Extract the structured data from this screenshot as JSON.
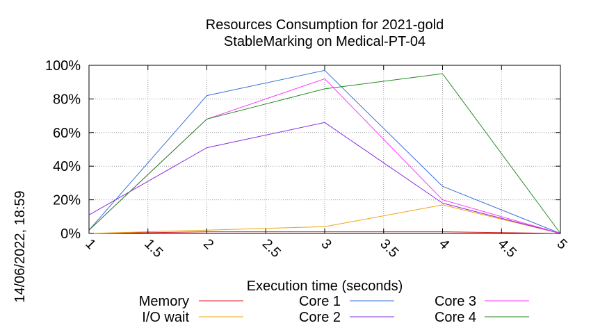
{
  "chart_data": {
    "type": "line",
    "title": "Resources Consumption for 2021-gold",
    "subtitle": "StableMarking on Medical-PT-04",
    "xlabel": "Execution time (seconds)",
    "ylabel": "",
    "side_label": "14/06/2022, 18:59",
    "x": [
      1,
      2,
      3,
      4,
      5
    ],
    "xlim": [
      1,
      5
    ],
    "ylim": [
      0,
      100
    ],
    "xticks": [
      "1",
      "1.5",
      "2",
      "2.5",
      "3",
      "3.5",
      "4",
      "4.5",
      "5"
    ],
    "xtick_values": [
      1,
      1.5,
      2,
      2.5,
      3,
      3.5,
      4,
      4.5,
      5
    ],
    "yticks": [
      "0%",
      "20%",
      "40%",
      "60%",
      "80%",
      "100%"
    ],
    "ytick_values": [
      0,
      20,
      40,
      60,
      80,
      100
    ],
    "grid": true,
    "legend_position": "bottom",
    "series": [
      {
        "name": "Memory",
        "color": "#e41a1c",
        "values": [
          0,
          1,
          1,
          1,
          0
        ]
      },
      {
        "name": "I/O wait",
        "color": "#f0a30a",
        "values": [
          0,
          2,
          4,
          17,
          0
        ]
      },
      {
        "name": "Core 1",
        "color": "#3a6fd8",
        "values": [
          2,
          82,
          97,
          28,
          0
        ]
      },
      {
        "name": "Core 2",
        "color": "#8a2be2",
        "values": [
          11,
          51,
          66,
          18,
          0
        ]
      },
      {
        "name": "Core 3",
        "color": "#ff33ff",
        "values": [
          2,
          68,
          92,
          20,
          0
        ]
      },
      {
        "name": "Core 4",
        "color": "#228b22",
        "values": [
          2,
          68,
          86,
          95,
          0
        ]
      }
    ]
  }
}
